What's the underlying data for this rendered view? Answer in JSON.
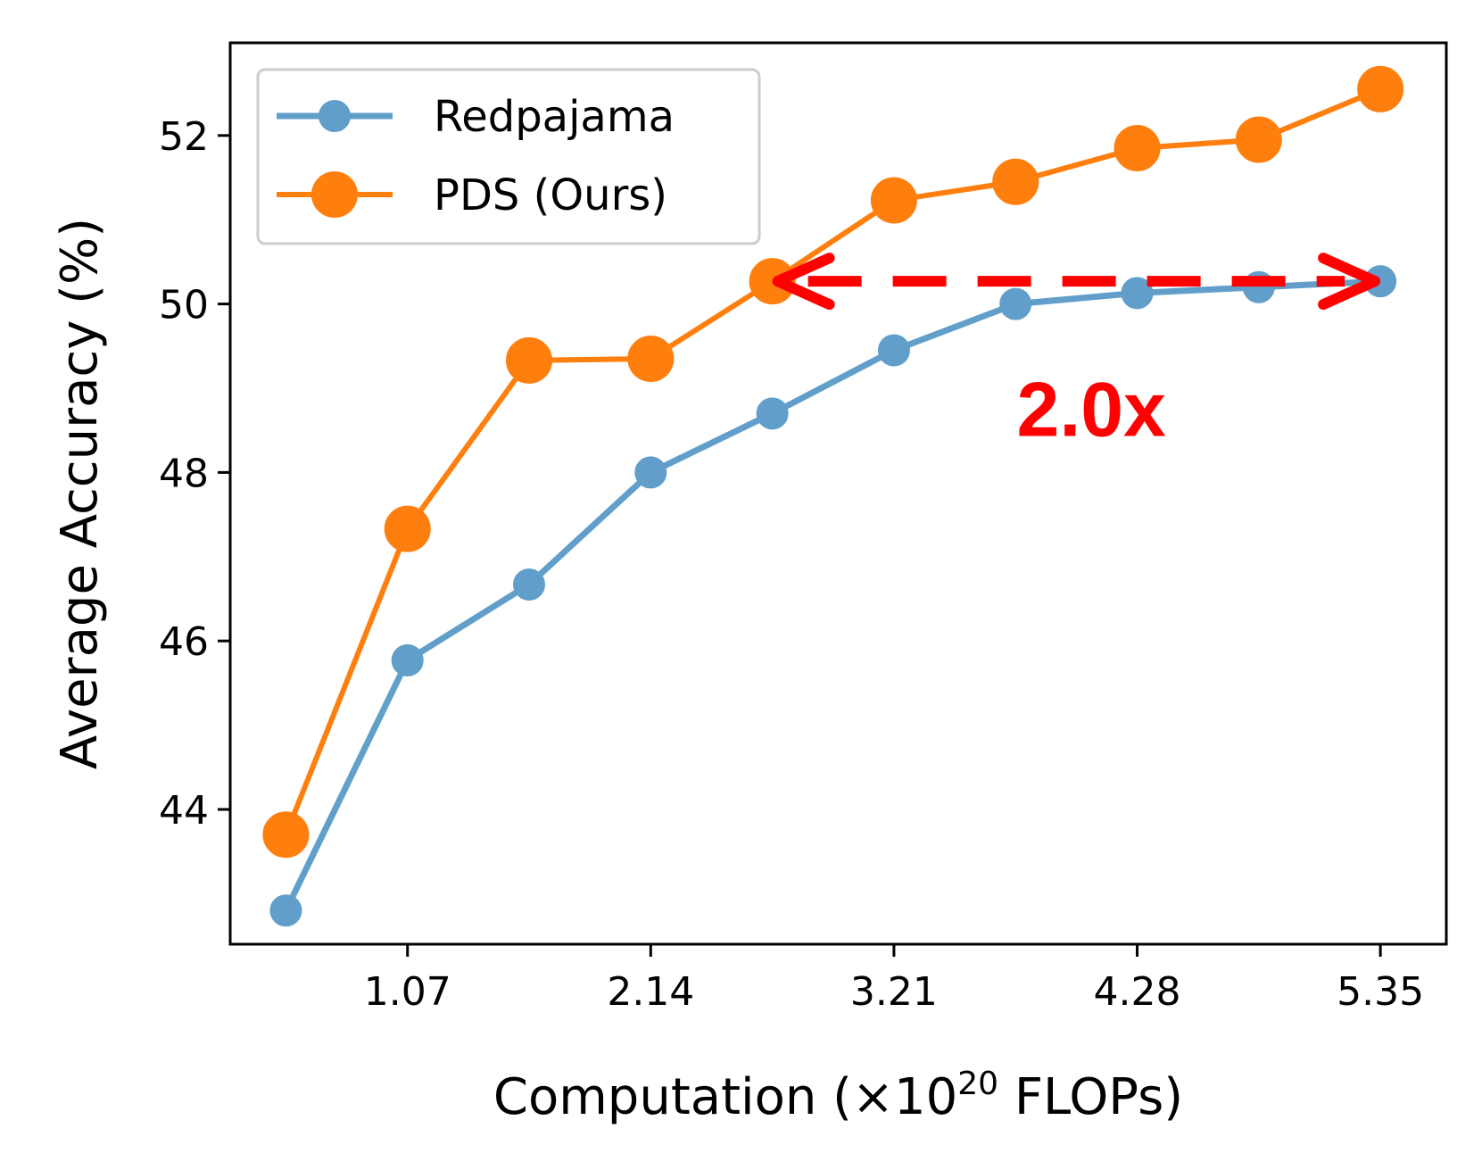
{
  "chart_data": {
    "type": "line",
    "xlabel": "Computation (×10^20 FLOPs)",
    "xlabel_parts": {
      "prefix": "Computation (×10",
      "exponent": "20",
      "suffix": " FLOPs)"
    },
    "ylabel": "Average Accuracy (%)",
    "x": [
      0.535,
      1.07,
      1.605,
      2.14,
      2.675,
      3.21,
      3.745,
      4.28,
      4.815,
      5.35
    ],
    "xticks": [
      1.07,
      2.14,
      3.21,
      4.28,
      5.35
    ],
    "xtick_labels": [
      "1.07",
      "2.14",
      "3.21",
      "4.28",
      "5.35"
    ],
    "yticks": [
      44,
      46,
      48,
      50,
      52
    ],
    "ytick_labels": [
      "44",
      "46",
      "48",
      "50",
      "52"
    ],
    "xlim": [
      0.29,
      5.64
    ],
    "ylim": [
      42.4,
      53.1
    ],
    "grid": false,
    "legend_position": "top-left",
    "series": [
      {
        "name": "Redpajama",
        "color": "#1f77b4",
        "values": [
          42.8,
          45.77,
          46.67,
          48.0,
          48.7,
          49.45,
          50.0,
          50.13,
          50.2,
          50.27
        ]
      },
      {
        "name": "PDS (Ours)",
        "color": "#ff7f0e",
        "values": [
          43.7,
          47.33,
          49.33,
          49.35,
          50.27,
          51.23,
          51.45,
          51.85,
          51.95,
          52.55
        ]
      }
    ],
    "annotation": {
      "text": "2.0x",
      "color": "#ff0000",
      "arrow_x": [
        2.675,
        5.35
      ],
      "arrow_y": 50.27,
      "text_x": 3.75,
      "text_y": 48.75
    }
  }
}
